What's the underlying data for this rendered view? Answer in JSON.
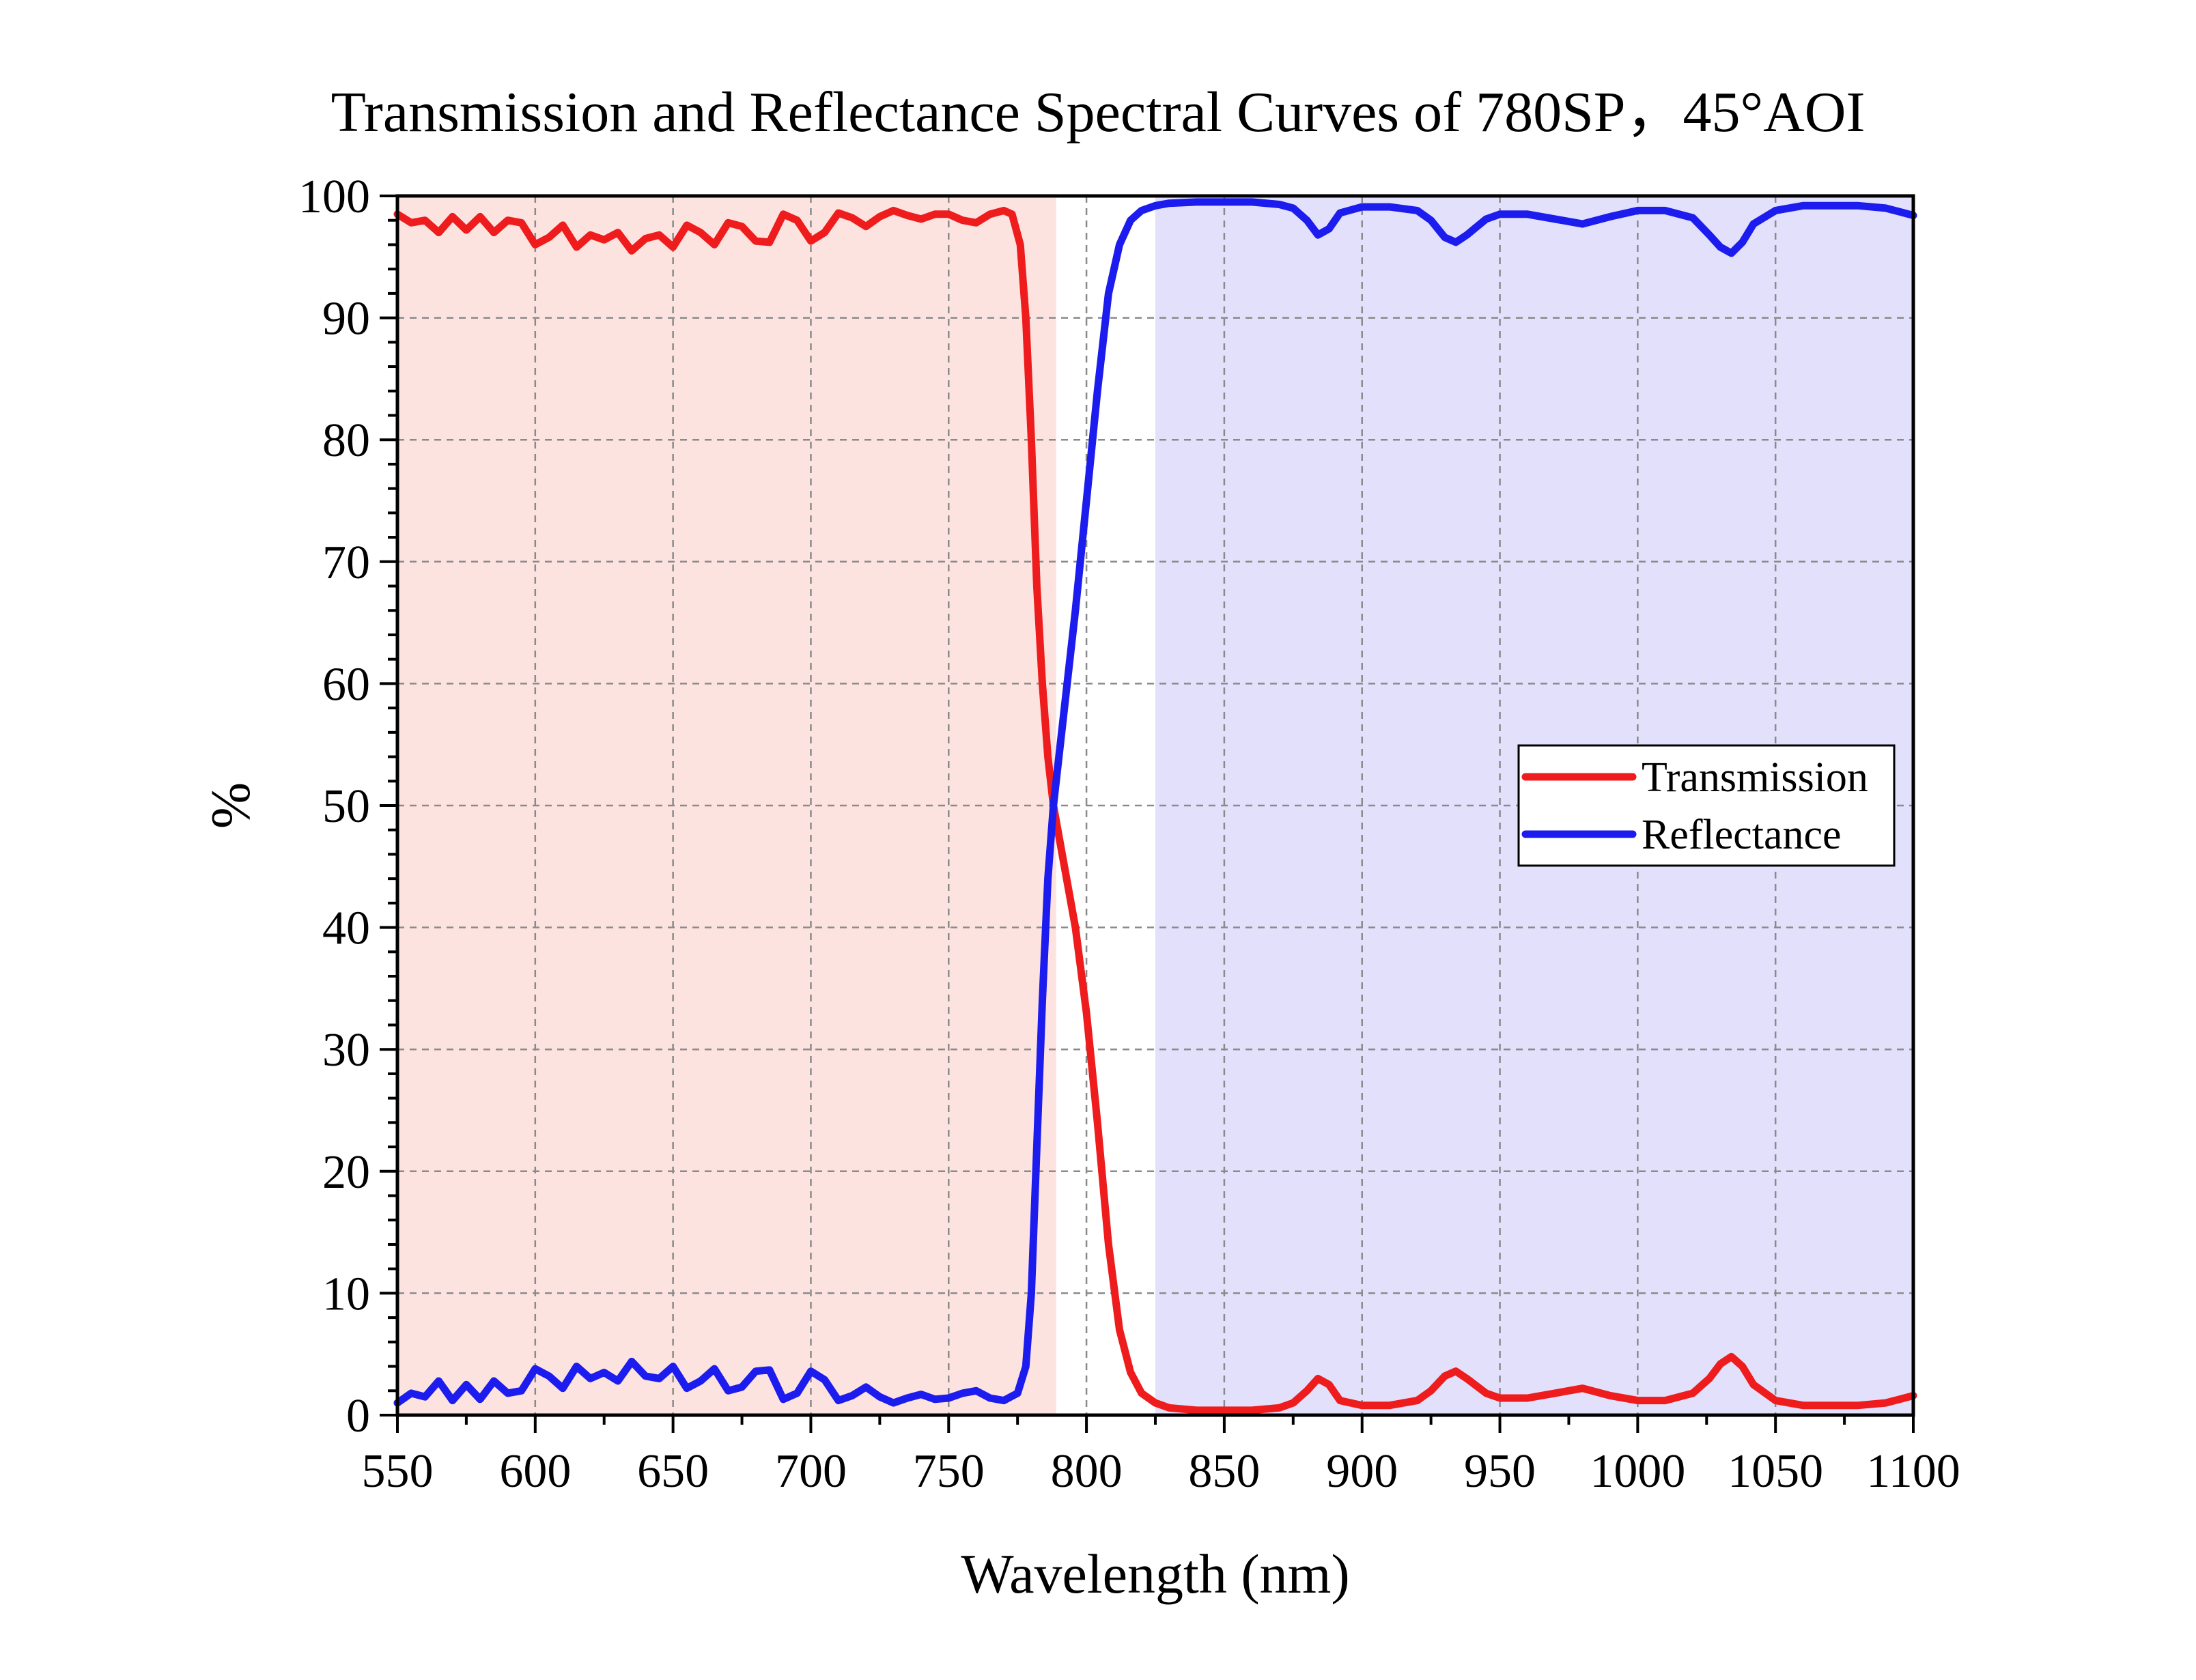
{
  "chart_data": {
    "type": "line",
    "title": "Transmission and Reflectance Spectral Curves of 780SP，45°AOI",
    "xlabel": "Wavelength (nm)",
    "ylabel": "%",
    "xlim": [
      550,
      1100
    ],
    "ylim": [
      0,
      100
    ],
    "xticks": [
      550,
      600,
      650,
      700,
      750,
      800,
      850,
      900,
      950,
      1000,
      1050,
      1100
    ],
    "yticks": [
      0,
      10,
      20,
      30,
      40,
      50,
      60,
      70,
      80,
      90,
      100
    ],
    "grid": true,
    "legend_position": "right-middle",
    "shaded_regions": [
      {
        "x_range": [
          550,
          789
        ],
        "color": "#fde3e0"
      },
      {
        "x_range": [
          825,
          1100
        ],
        "color": "#e2e0fb"
      }
    ],
    "series": [
      {
        "name": "Transmission",
        "color": "#ee1c1c",
        "points": [
          [
            550,
            98.5
          ],
          [
            555,
            97.8
          ],
          [
            560,
            98.0
          ],
          [
            565,
            97.0
          ],
          [
            570,
            98.3
          ],
          [
            575,
            97.2
          ],
          [
            580,
            98.3
          ],
          [
            585,
            97.0
          ],
          [
            590,
            98.0
          ],
          [
            595,
            97.8
          ],
          [
            600,
            96.0
          ],
          [
            605,
            96.6
          ],
          [
            610,
            97.6
          ],
          [
            615,
            95.8
          ],
          [
            620,
            96.8
          ],
          [
            625,
            96.4
          ],
          [
            630,
            97.0
          ],
          [
            635,
            95.5
          ],
          [
            640,
            96.5
          ],
          [
            645,
            96.8
          ],
          [
            650,
            95.8
          ],
          [
            655,
            97.6
          ],
          [
            660,
            97.0
          ],
          [
            665,
            96.0
          ],
          [
            670,
            97.8
          ],
          [
            675,
            97.5
          ],
          [
            680,
            96.3
          ],
          [
            685,
            96.2
          ],
          [
            690,
            98.5
          ],
          [
            695,
            98.0
          ],
          [
            700,
            96.3
          ],
          [
            705,
            97.0
          ],
          [
            710,
            98.6
          ],
          [
            715,
            98.2
          ],
          [
            720,
            97.5
          ],
          [
            725,
            98.3
          ],
          [
            730,
            98.8
          ],
          [
            735,
            98.4
          ],
          [
            740,
            98.1
          ],
          [
            745,
            98.5
          ],
          [
            750,
            98.5
          ],
          [
            755,
            98.0
          ],
          [
            760,
            97.8
          ],
          [
            765,
            98.5
          ],
          [
            770,
            98.8
          ],
          [
            773,
            98.5
          ],
          [
            776,
            96.0
          ],
          [
            778,
            90.0
          ],
          [
            780,
            80.0
          ],
          [
            782,
            68.0
          ],
          [
            784,
            60.0
          ],
          [
            786,
            54.0
          ],
          [
            788,
            50.0
          ],
          [
            792,
            45.0
          ],
          [
            796,
            40.0
          ],
          [
            800,
            33.0
          ],
          [
            804,
            24.0
          ],
          [
            808,
            14.0
          ],
          [
            812,
            7.0
          ],
          [
            816,
            3.5
          ],
          [
            820,
            1.8
          ],
          [
            825,
            1.0
          ],
          [
            830,
            0.6
          ],
          [
            840,
            0.4
          ],
          [
            850,
            0.4
          ],
          [
            860,
            0.4
          ],
          [
            870,
            0.6
          ],
          [
            875,
            1.0
          ],
          [
            880,
            2.0
          ],
          [
            884,
            3.0
          ],
          [
            888,
            2.5
          ],
          [
            892,
            1.2
          ],
          [
            900,
            0.8
          ],
          [
            910,
            0.8
          ],
          [
            920,
            1.2
          ],
          [
            925,
            2.0
          ],
          [
            930,
            3.2
          ],
          [
            934,
            3.6
          ],
          [
            938,
            3.0
          ],
          [
            945,
            1.8
          ],
          [
            950,
            1.4
          ],
          [
            960,
            1.4
          ],
          [
            970,
            1.8
          ],
          [
            980,
            2.2
          ],
          [
            990,
            1.6
          ],
          [
            1000,
            1.2
          ],
          [
            1010,
            1.2
          ],
          [
            1020,
            1.8
          ],
          [
            1026,
            3.0
          ],
          [
            1030,
            4.2
          ],
          [
            1034,
            4.8
          ],
          [
            1038,
            4.0
          ],
          [
            1042,
            2.5
          ],
          [
            1050,
            1.2
          ],
          [
            1060,
            0.8
          ],
          [
            1070,
            0.8
          ],
          [
            1080,
            0.8
          ],
          [
            1090,
            1.0
          ],
          [
            1095,
            1.3
          ],
          [
            1100,
            1.6
          ]
        ]
      },
      {
        "name": "Reflectance",
        "color": "#1c1cee",
        "points": [
          [
            550,
            1.0
          ],
          [
            555,
            1.8
          ],
          [
            560,
            1.5
          ],
          [
            565,
            2.8
          ],
          [
            570,
            1.2
          ],
          [
            575,
            2.5
          ],
          [
            580,
            1.3
          ],
          [
            585,
            2.8
          ],
          [
            590,
            1.8
          ],
          [
            595,
            2.0
          ],
          [
            600,
            3.8
          ],
          [
            605,
            3.2
          ],
          [
            610,
            2.2
          ],
          [
            615,
            4.0
          ],
          [
            620,
            3.0
          ],
          [
            625,
            3.5
          ],
          [
            630,
            2.8
          ],
          [
            635,
            4.4
          ],
          [
            640,
            3.2
          ],
          [
            645,
            3.0
          ],
          [
            650,
            4.0
          ],
          [
            655,
            2.2
          ],
          [
            660,
            2.8
          ],
          [
            665,
            3.8
          ],
          [
            670,
            2.0
          ],
          [
            675,
            2.3
          ],
          [
            680,
            3.6
          ],
          [
            685,
            3.7
          ],
          [
            690,
            1.3
          ],
          [
            695,
            1.8
          ],
          [
            700,
            3.6
          ],
          [
            705,
            2.9
          ],
          [
            710,
            1.2
          ],
          [
            715,
            1.6
          ],
          [
            720,
            2.3
          ],
          [
            725,
            1.5
          ],
          [
            730,
            1.0
          ],
          [
            735,
            1.4
          ],
          [
            740,
            1.7
          ],
          [
            745,
            1.3
          ],
          [
            750,
            1.4
          ],
          [
            755,
            1.8
          ],
          [
            760,
            2.0
          ],
          [
            765,
            1.4
          ],
          [
            770,
            1.2
          ],
          [
            775,
            1.8
          ],
          [
            778,
            4.0
          ],
          [
            780,
            10.0
          ],
          [
            782,
            22.0
          ],
          [
            784,
            34.0
          ],
          [
            786,
            44.0
          ],
          [
            788,
            50.0
          ],
          [
            792,
            58.0
          ],
          [
            796,
            66.0
          ],
          [
            800,
            75.0
          ],
          [
            804,
            84.0
          ],
          [
            808,
            92.0
          ],
          [
            812,
            96.0
          ],
          [
            816,
            98.0
          ],
          [
            820,
            98.8
          ],
          [
            825,
            99.2
          ],
          [
            830,
            99.4
          ],
          [
            840,
            99.5
          ],
          [
            850,
            99.5
          ],
          [
            860,
            99.5
          ],
          [
            870,
            99.3
          ],
          [
            875,
            99.0
          ],
          [
            880,
            98.0
          ],
          [
            884,
            96.8
          ],
          [
            888,
            97.3
          ],
          [
            892,
            98.6
          ],
          [
            900,
            99.1
          ],
          [
            910,
            99.1
          ],
          [
            920,
            98.8
          ],
          [
            925,
            98.0
          ],
          [
            930,
            96.6
          ],
          [
            934,
            96.2
          ],
          [
            938,
            96.8
          ],
          [
            945,
            98.1
          ],
          [
            950,
            98.5
          ],
          [
            960,
            98.5
          ],
          [
            970,
            98.1
          ],
          [
            980,
            97.7
          ],
          [
            990,
            98.3
          ],
          [
            1000,
            98.8
          ],
          [
            1010,
            98.8
          ],
          [
            1020,
            98.2
          ],
          [
            1026,
            96.8
          ],
          [
            1030,
            95.8
          ],
          [
            1034,
            95.3
          ],
          [
            1038,
            96.2
          ],
          [
            1042,
            97.7
          ],
          [
            1050,
            98.8
          ],
          [
            1060,
            99.2
          ],
          [
            1070,
            99.2
          ],
          [
            1080,
            99.2
          ],
          [
            1090,
            99.0
          ],
          [
            1095,
            98.7
          ],
          [
            1100,
            98.4
          ]
        ]
      }
    ]
  }
}
